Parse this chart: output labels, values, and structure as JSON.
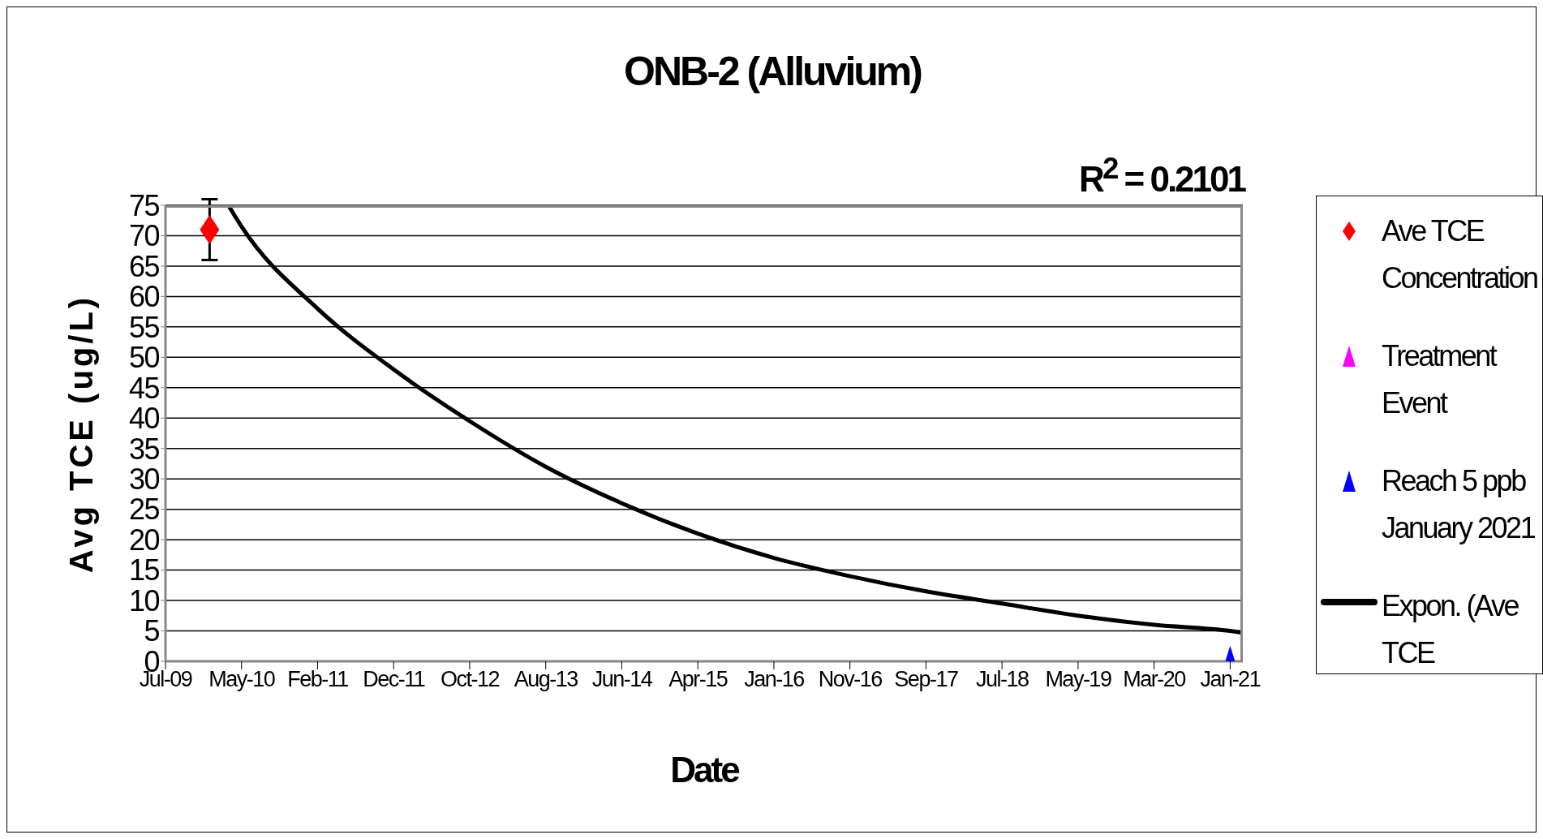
{
  "chart_data": {
    "type": "scatter",
    "title": "ONB-2 (Alluvium)",
    "xlabel": "Date",
    "ylabel": "Avg TCE (ug/L)",
    "annotations": [
      "R$^{2}$ = 0.2101"
    ],
    "xlim": [
      "2009-07-06",
      "2021-02-23"
    ],
    "xticks": [
      {
        "value": "2009-07-06",
        "label": "Jul-09"
      },
      {
        "value": "2010-05-02",
        "label": "May-10"
      },
      {
        "value": "2011-02-26",
        "label": "Feb-11"
      },
      {
        "value": "2011-12-23",
        "label": "Dec-11"
      },
      {
        "value": "2012-10-18",
        "label": "Oct-12"
      },
      {
        "value": "2013-08-14",
        "label": "Aug-13"
      },
      {
        "value": "2014-06-10",
        "label": "Jun-14"
      },
      {
        "value": "2015-04-06",
        "label": "Apr-15"
      },
      {
        "value": "2016-01-31",
        "label": "Jan-16"
      },
      {
        "value": "2016-11-26",
        "label": "Nov-16"
      },
      {
        "value": "2017-09-22",
        "label": "Sep-17"
      },
      {
        "value": "2018-07-19",
        "label": "Jul-18"
      },
      {
        "value": "2019-05-15",
        "label": "May-19"
      },
      {
        "value": "2020-03-10",
        "label": "Mar-20"
      },
      {
        "value": "2021-01-04",
        "label": "Jan-21"
      }
    ],
    "ylim": [
      0,
      75
    ],
    "yticks": [
      0,
      5,
      10,
      15,
      20,
      25,
      30,
      35,
      40,
      45,
      50,
      55,
      60,
      65,
      70,
      75
    ],
    "grid": "y",
    "legend": "right",
    "series": [
      {
        "name": "Ave TCE Concentration",
        "type": "scatter",
        "marker": "diamond",
        "color": "#ff0000",
        "x": [
          "2009-12-27"
        ],
        "values": [
          71
        ],
        "errors": [
          5
        ]
      },
      {
        "name": "Treatment Event",
        "type": "scatter",
        "marker": "triangle",
        "color": "#ff00ff"
      },
      {
        "name": "Reach 5 ppb January 2021",
        "type": "scatter",
        "marker": "triangle",
        "color": "#0000ff",
        "x": [
          "2021-01-04"
        ],
        "values": [
          0
        ]
      },
      {
        "name": "Expon. (Ave TCE",
        "type": "line",
        "marker": "none",
        "line_style": "solid",
        "color": "#000000",
        "x": [
          "2010-03-11",
          "2010-05-02",
          "2011-02-26",
          "2011-12-23",
          "2012-10-18",
          "2013-08-14",
          "2014-06-10",
          "2015-04-06",
          "2016-01-31",
          "2016-11-26",
          "2017-09-22",
          "2018-07-19",
          "2019-05-15",
          "2020-03-10",
          "2021-01-04",
          "2021-02-23"
        ],
        "values": [
          75,
          71.5,
          58,
          48,
          39.5,
          32,
          26,
          21,
          17,
          14,
          11.5,
          9.5,
          7.5,
          6,
          5,
          4.7
        ]
      }
    ]
  }
}
